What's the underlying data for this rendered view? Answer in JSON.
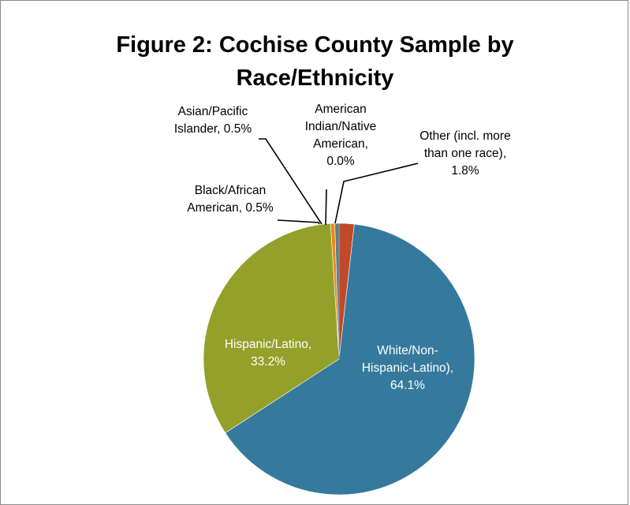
{
  "chart_data": {
    "type": "pie",
    "title_lines": [
      "Figure 2: Cochise County Sample by",
      "Race/Ethnicity"
    ],
    "slices": [
      {
        "label": "Other (incl. more than one race)",
        "value": 1.8,
        "value_text": "1.8%",
        "color": "#c0492b",
        "label_lines": [
          "Other (incl. more",
          "than one race),",
          "1.8%"
        ],
        "text_color": "#000000"
      },
      {
        "label": "White/Non-Hispanic-Latino)",
        "value": 64.1,
        "value_text": "64.1%",
        "color": "#357a9c",
        "label_lines": [
          "White/Non-",
          "Hispanic-Latino),",
          "64.1%"
        ],
        "text_color": "#ffffff"
      },
      {
        "label": "Hispanic/Latino",
        "value": 33.2,
        "value_text": "33.2%",
        "color": "#93a02a",
        "label_lines": [
          "Hispanic/Latino,",
          "33.2%"
        ],
        "text_color": "#ffffff"
      },
      {
        "label": "Black/African American",
        "value": 0.5,
        "value_text": "0.5%",
        "color": "#e88a1a",
        "label_lines": [
          "Black/African",
          "American, 0.5%"
        ],
        "text_color": "#000000"
      },
      {
        "label": "Asian/Pacific Islander",
        "value": 0.5,
        "value_text": "0.5%",
        "color": "#5e7e8c",
        "label_lines": [
          "Asian/Pacific",
          "Islander, 0.5%"
        ],
        "text_color": "#000000"
      },
      {
        "label": "American Indian/Native American",
        "value": 0.0,
        "value_text": "0.0%",
        "color": "#9a9a9a",
        "label_lines": [
          "American",
          "Indian/Native",
          "American,",
          "0.0%"
        ],
        "text_color": "#000000"
      }
    ]
  }
}
